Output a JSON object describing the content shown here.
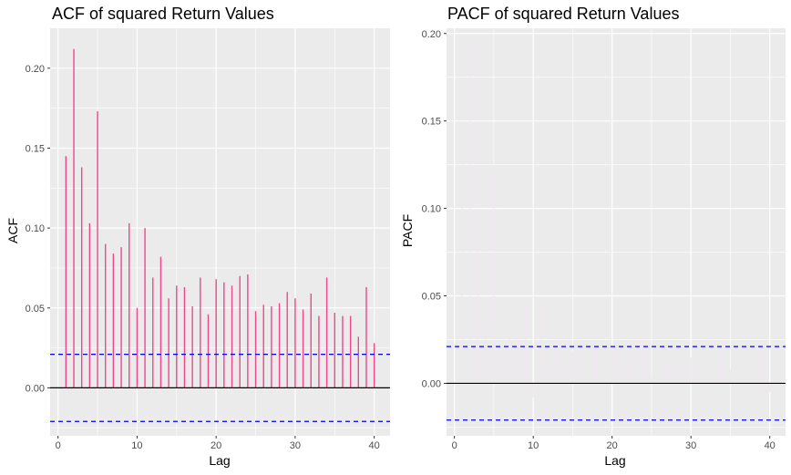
{
  "colors": {
    "panel_background": "#ebebeb",
    "grid_major": "#ffffff",
    "acf_bar": "#f0468c",
    "pacf_bar": "#f3e6f3",
    "confidence_line": "#0000ee",
    "zero_line": "#000000"
  },
  "chart_data": [
    {
      "type": "bar",
      "title": "ACF of squared Return Values",
      "xlabel": "Lag",
      "ylabel": "ACF",
      "xlim": [
        -1,
        42
      ],
      "ylim": [
        -0.03,
        0.225
      ],
      "x_ticks": [
        0,
        10,
        20,
        30,
        40
      ],
      "x_tick_labels": [
        "0",
        "10",
        "20",
        "30",
        "40"
      ],
      "y_ticks": [
        0.0,
        0.05,
        0.1,
        0.15,
        0.2
      ],
      "y_tick_labels": [
        "0.00",
        "0.05",
        "0.10",
        "0.15",
        "0.20"
      ],
      "confidence_bounds": [
        0.021,
        -0.021
      ],
      "grid": true,
      "x": [
        1,
        2,
        3,
        4,
        5,
        6,
        7,
        8,
        9,
        10,
        11,
        12,
        13,
        14,
        15,
        16,
        17,
        18,
        19,
        20,
        21,
        22,
        23,
        24,
        25,
        26,
        27,
        28,
        29,
        30,
        31,
        32,
        33,
        34,
        35,
        36,
        37,
        38,
        39,
        40
      ],
      "values": [
        0.145,
        0.212,
        0.138,
        0.103,
        0.173,
        0.09,
        0.084,
        0.088,
        0.103,
        0.05,
        0.1,
        0.069,
        0.082,
        0.056,
        0.064,
        0.063,
        0.051,
        0.069,
        0.046,
        0.068,
        0.066,
        0.064,
        0.07,
        0.071,
        0.048,
        0.052,
        0.051,
        0.053,
        0.06,
        0.056,
        0.049,
        0.059,
        0.045,
        0.069,
        0.047,
        0.045,
        0.045,
        0.032,
        0.063,
        0.028
      ]
    },
    {
      "type": "bar",
      "title": "PACF of squared Return Values",
      "xlabel": "Lag",
      "ylabel": "PACF",
      "xlim": [
        -1,
        42
      ],
      "ylim": [
        -0.03,
        0.203
      ],
      "x_ticks": [
        0,
        10,
        20,
        30,
        40
      ],
      "x_tick_labels": [
        "0",
        "10",
        "20",
        "30",
        "40"
      ],
      "y_ticks": [
        0.0,
        0.05,
        0.1,
        0.15,
        0.2
      ],
      "y_tick_labels": [
        "0.00",
        "0.05",
        "0.10",
        "0.15",
        "0.20"
      ],
      "confidence_bounds": [
        0.021,
        -0.021
      ],
      "grid": true,
      "x": [
        1,
        2,
        3,
        4,
        5,
        6,
        7,
        8,
        9,
        10,
        11,
        12,
        13,
        14,
        15,
        16,
        17,
        18,
        19,
        20,
        21,
        22,
        23,
        24,
        25,
        26,
        27,
        28,
        29,
        30,
        31,
        32,
        33,
        34,
        35,
        36,
        37,
        38,
        39,
        40
      ],
      "values": [
        0.145,
        0.196,
        0.085,
        0.04,
        0.125,
        0.02,
        0.03,
        0.035,
        0.045,
        -0.008,
        0.045,
        0.01,
        0.025,
        0.005,
        0.018,
        0.015,
        0.002,
        0.022,
        0.0,
        0.02,
        0.018,
        0.016,
        0.022,
        0.025,
        0.003,
        0.01,
        0.012,
        0.012,
        0.02,
        0.015,
        0.008,
        0.018,
        0.003,
        0.025,
        0.008,
        0.005,
        0.006,
        -0.004,
        0.022,
        -0.005
      ]
    }
  ]
}
